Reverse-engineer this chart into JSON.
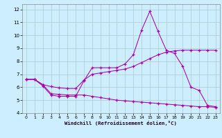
{
  "xlabel": "Windchill (Refroidissement éolien,°C)",
  "background_color": "#cceeff",
  "line_color": "#aa00aa",
  "grid_color": "#aacccc",
  "xlim": [
    -0.5,
    23.5
  ],
  "ylim": [
    4,
    12.4
  ],
  "xticks": [
    0,
    1,
    2,
    3,
    4,
    5,
    6,
    7,
    8,
    9,
    10,
    11,
    12,
    13,
    14,
    15,
    16,
    17,
    18,
    19,
    20,
    21,
    22,
    23
  ],
  "yticks": [
    4,
    5,
    6,
    7,
    8,
    9,
    10,
    11,
    12
  ],
  "line1_x": [
    0,
    1,
    2,
    3,
    4,
    5,
    6,
    7,
    8,
    9,
    10,
    11,
    12,
    13,
    14,
    15,
    16,
    17,
    18,
    19,
    20,
    21,
    22,
    23
  ],
  "line1_y": [
    6.6,
    6.6,
    6.1,
    5.4,
    5.3,
    5.3,
    5.3,
    6.5,
    7.5,
    7.5,
    7.5,
    7.5,
    7.8,
    8.5,
    10.4,
    11.85,
    10.3,
    8.85,
    8.6,
    7.6,
    6.0,
    5.75,
    4.6,
    4.5
  ],
  "line2_x": [
    0,
    1,
    2,
    3,
    4,
    5,
    6,
    7,
    8,
    9,
    10,
    11,
    12,
    13,
    14,
    15,
    16,
    17,
    18,
    19,
    20,
    21,
    22,
    23
  ],
  "line2_y": [
    6.6,
    6.6,
    6.2,
    6.05,
    5.95,
    5.9,
    5.9,
    6.55,
    7.0,
    7.1,
    7.2,
    7.3,
    7.4,
    7.6,
    7.9,
    8.2,
    8.5,
    8.7,
    8.8,
    8.85,
    8.85,
    8.85,
    8.85,
    8.85
  ],
  "line3_x": [
    0,
    1,
    2,
    3,
    4,
    5,
    6,
    7,
    8,
    9,
    10,
    11,
    12,
    13,
    14,
    15,
    16,
    17,
    18,
    19,
    20,
    21,
    22,
    23
  ],
  "line3_y": [
    6.6,
    6.6,
    6.2,
    5.5,
    5.45,
    5.4,
    5.4,
    5.4,
    5.3,
    5.2,
    5.1,
    5.0,
    4.95,
    4.9,
    4.85,
    4.8,
    4.75,
    4.7,
    4.65,
    4.6,
    4.55,
    4.5,
    4.5,
    4.45
  ]
}
